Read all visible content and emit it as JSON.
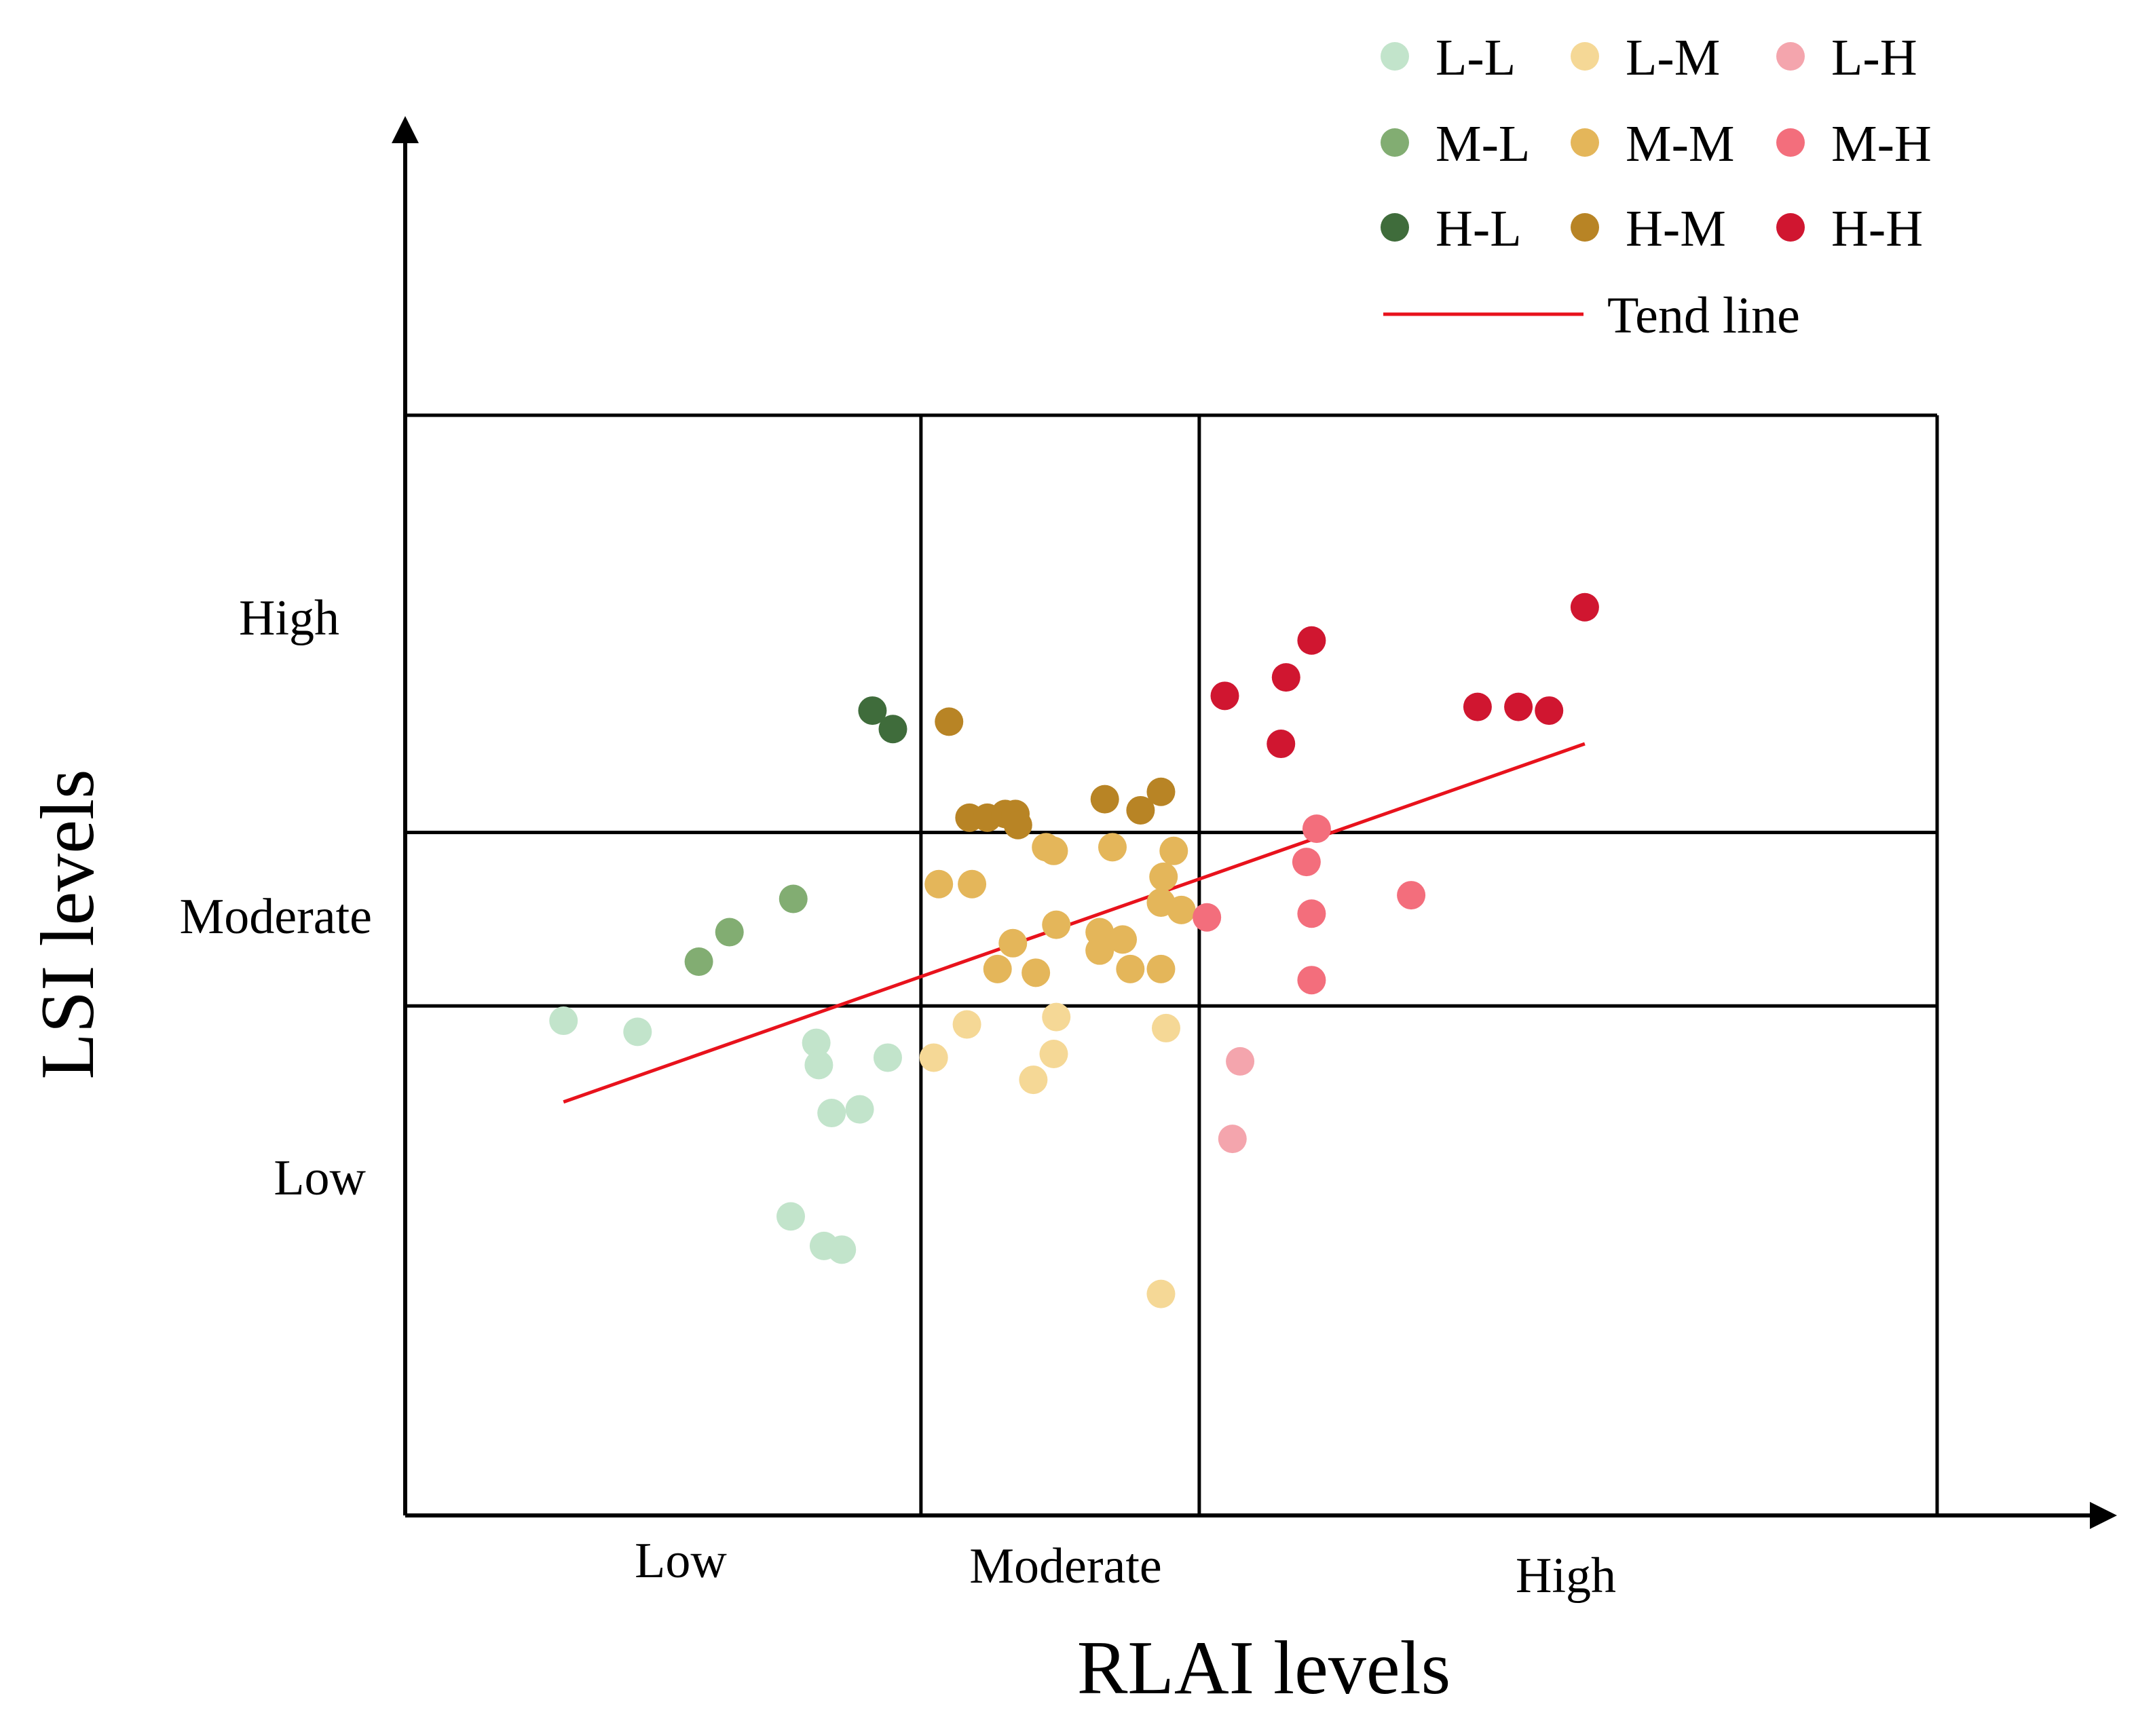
{
  "chart_data": {
    "type": "scatter",
    "xlabel": "RLAI levels",
    "ylabel": "LSI levels",
    "xlim": [
      0,
      3
    ],
    "ylim": [
      0,
      3
    ],
    "x_categories": [
      "Low",
      "Moderate",
      "High"
    ],
    "y_categories": [
      "Low",
      "Moderate",
      "High"
    ],
    "x_boundaries": [
      0,
      1.01,
      1.555,
      3
    ],
    "y_boundaries": [
      0,
      1.38,
      1.85,
      2.98
    ],
    "grid": true,
    "legend_position": "top-right",
    "series": [
      {
        "name": "L-L",
        "color": "#c2e4cb",
        "points": [
          [
            0.31,
            1.34
          ],
          [
            0.455,
            1.31
          ],
          [
            0.805,
            1.28
          ],
          [
            0.81,
            1.22
          ],
          [
            0.945,
            1.24
          ],
          [
            0.835,
            1.09
          ],
          [
            0.89,
            1.1
          ],
          [
            0.755,
            0.81
          ],
          [
            0.82,
            0.73
          ],
          [
            0.855,
            0.72
          ]
        ]
      },
      {
        "name": "M-L",
        "color": "#82ad72",
        "points": [
          [
            0.575,
            1.5
          ],
          [
            0.635,
            1.58
          ],
          [
            0.76,
            1.67
          ]
        ]
      },
      {
        "name": "H-L",
        "color": "#3f6c3b",
        "points": [
          [
            0.915,
            2.18
          ],
          [
            0.955,
            2.13
          ]
        ]
      },
      {
        "name": "L-M",
        "color": "#f5d896",
        "points": [
          [
            1.1,
            1.33
          ],
          [
            1.275,
            1.35
          ],
          [
            1.49,
            1.32
          ],
          [
            1.035,
            1.24
          ],
          [
            1.27,
            1.25
          ],
          [
            1.23,
            1.18
          ],
          [
            1.48,
            0.6
          ]
        ]
      },
      {
        "name": "M-M",
        "color": "#e4b65a",
        "points": [
          [
            1.255,
            1.81
          ],
          [
            1.27,
            1.8
          ],
          [
            1.385,
            1.81
          ],
          [
            1.505,
            1.8
          ],
          [
            1.485,
            1.73
          ],
          [
            1.045,
            1.71
          ],
          [
            1.11,
            1.71
          ],
          [
            1.48,
            1.66
          ],
          [
            1.52,
            1.64
          ],
          [
            1.275,
            1.6
          ],
          [
            1.36,
            1.58
          ],
          [
            1.405,
            1.56
          ],
          [
            1.19,
            1.55
          ],
          [
            1.36,
            1.53
          ],
          [
            1.16,
            1.48
          ],
          [
            1.235,
            1.47
          ],
          [
            1.42,
            1.48
          ],
          [
            1.48,
            1.48
          ]
        ]
      },
      {
        "name": "H-M",
        "color": "#b88425",
        "points": [
          [
            1.065,
            2.15
          ],
          [
            1.37,
            1.94
          ],
          [
            1.48,
            1.96
          ],
          [
            1.44,
            1.91
          ],
          [
            1.105,
            1.89
          ],
          [
            1.14,
            1.89
          ],
          [
            1.175,
            1.9
          ],
          [
            1.195,
            1.9
          ],
          [
            1.2,
            1.87
          ]
        ]
      },
      {
        "name": "L-H",
        "color": "#f4a5ad",
        "points": [
          [
            1.635,
            1.23
          ],
          [
            1.62,
            1.02
          ]
        ]
      },
      {
        "name": "M-H",
        "color": "#f36e7c",
        "points": [
          [
            1.785,
            1.86
          ],
          [
            1.765,
            1.77
          ],
          [
            1.97,
            1.68
          ],
          [
            1.57,
            1.62
          ],
          [
            1.775,
            1.63
          ],
          [
            1.775,
            1.45
          ]
        ]
      },
      {
        "name": "H-H",
        "color": "#d01630",
        "points": [
          [
            2.31,
            2.46
          ],
          [
            1.775,
            2.37
          ],
          [
            1.725,
            2.27
          ],
          [
            1.605,
            2.22
          ],
          [
            2.1,
            2.19
          ],
          [
            2.18,
            2.19
          ],
          [
            2.24,
            2.18
          ],
          [
            1.715,
            2.09
          ]
        ]
      }
    ],
    "trend_line": {
      "name": "Tend line",
      "color": "#e8121c",
      "points": [
        [
          0.31,
          1.12
        ],
        [
          2.31,
          2.09
        ]
      ]
    }
  }
}
